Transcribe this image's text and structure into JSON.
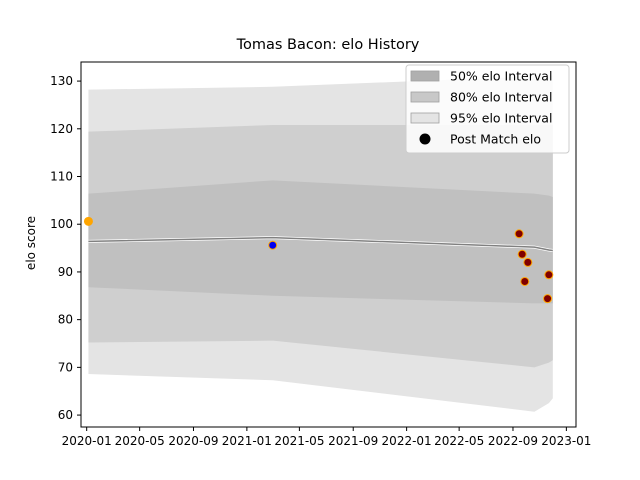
{
  "chart_data": {
    "type": "line",
    "title": "Tomas Bacon: elo History",
    "xlabel": "",
    "ylabel": "elo score",
    "xlim": [
      "2019-12-19",
      "2023-01-23"
    ],
    "ylim": [
      57.5,
      134
    ],
    "x_ticks": [
      "2020-01",
      "2020-05",
      "2020-09",
      "2021-01",
      "2021-05",
      "2021-09",
      "2022-01",
      "2022-05",
      "2022-09",
      "2023-01"
    ],
    "y_ticks": [
      60,
      70,
      80,
      90,
      100,
      110,
      120,
      130
    ],
    "grid": false,
    "legend_position": "top-right",
    "legend": [
      {
        "label": "50% elo Interval",
        "color": "#b0b0b0",
        "kind": "patch"
      },
      {
        "label": "80% elo Interval",
        "color": "#c8c8c8",
        "kind": "patch"
      },
      {
        "label": "95% elo Interval",
        "color": "#e4e4e4",
        "kind": "patch"
      },
      {
        "label": "Post Match elo",
        "color": "#000000",
        "kind": "marker"
      }
    ],
    "band_x": [
      "2020-01-05",
      "2021-03-01",
      "2022-10-20",
      "2022-11-22",
      "2022-12-01"
    ],
    "bands": {
      "ci95": {
        "color": "#e4e4e4",
        "upper": [
          128.2,
          128.8,
          131.0,
          131.2,
          131.2
        ],
        "lower": [
          68.6,
          67.3,
          60.7,
          62.5,
          63.5
        ]
      },
      "ci80": {
        "color": "#cfcfcf",
        "upper": [
          119.4,
          120.8,
          120.8,
          120.8,
          120.8
        ],
        "lower": [
          75.2,
          75.6,
          70.0,
          71.0,
          71.5
        ]
      },
      "ci50": {
        "color": "#c0c0c0",
        "upper": [
          106.4,
          109.2,
          106.4,
          106.0,
          105.7
        ],
        "lower": [
          86.8,
          85.0,
          83.4,
          83.4,
          83.4
        ]
      }
    },
    "mean_line": {
      "x": [
        "2020-01-05",
        "2021-03-01",
        "2022-10-20",
        "2022-11-22",
        "2022-12-01"
      ],
      "y": [
        96.4,
        97.2,
        95.2,
        94.6,
        94.5
      ]
    },
    "points": [
      {
        "x": "2020-01-05",
        "y": 100.6,
        "fill": "#ffa500"
      },
      {
        "x": "2021-03-01",
        "y": 95.6,
        "fill": "#0000ee"
      },
      {
        "x": "2022-09-15",
        "y": 98.0,
        "fill": "#800000"
      },
      {
        "x": "2022-09-22",
        "y": 93.7,
        "fill": "#800000"
      },
      {
        "x": "2022-10-05",
        "y": 92.0,
        "fill": "#800000"
      },
      {
        "x": "2022-09-28",
        "y": 88.0,
        "fill": "#800000"
      },
      {
        "x": "2022-11-22",
        "y": 89.4,
        "fill": "#800000"
      },
      {
        "x": "2022-11-19",
        "y": 84.4,
        "fill": "#800000"
      }
    ],
    "point_edge_color": "#ffa500"
  }
}
